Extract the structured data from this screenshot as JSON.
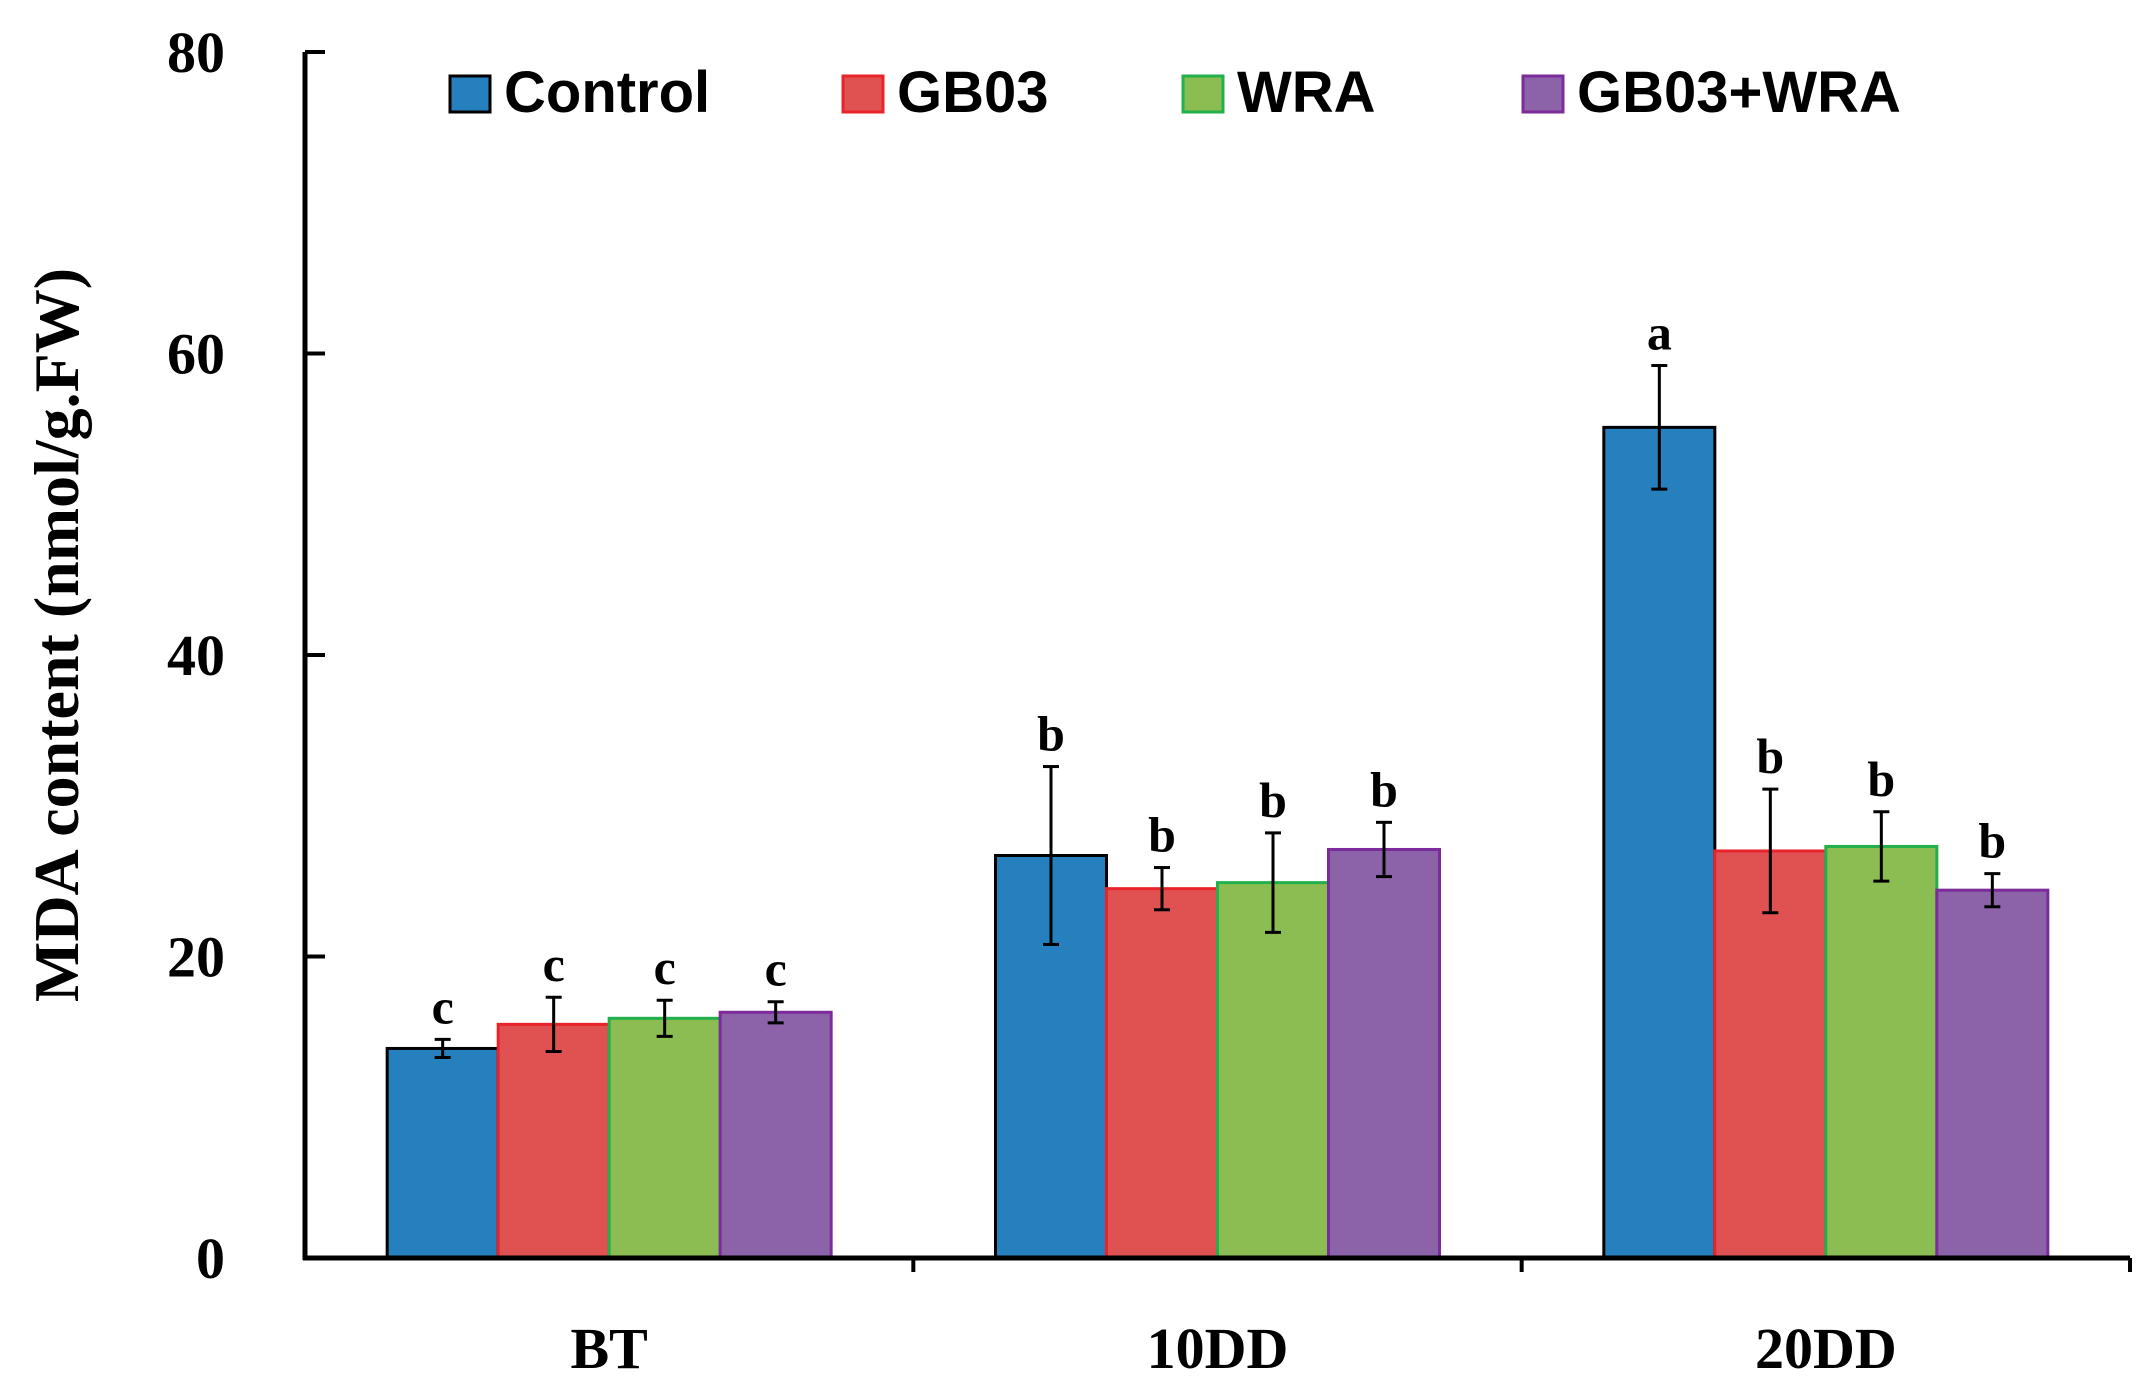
{
  "chart_data": {
    "type": "bar",
    "title": "",
    "xlabel": "",
    "ylabel": "MDA content (nmol/g.FW)",
    "ylim": [
      0,
      80
    ],
    "yticks": [
      "0",
      "20",
      "40",
      "60",
      "80"
    ],
    "categories": [
      "BT",
      "10DD",
      "20DD"
    ],
    "grid": false,
    "legend_position": "top",
    "series": [
      {
        "name": "Control",
        "fill": "#2780BE",
        "stroke": "#000000",
        "values": [
          13.9,
          26.7,
          55.1
        ],
        "errors": [
          0.6,
          5.9,
          4.1
        ],
        "letters": [
          "c",
          "b",
          "a"
        ]
      },
      {
        "name": "GB03",
        "fill": "#E05252",
        "stroke": "#E8242A",
        "values": [
          15.5,
          24.5,
          27.0
        ],
        "errors": [
          1.8,
          1.4,
          4.1
        ],
        "letters": [
          "c",
          "b",
          "b"
        ]
      },
      {
        "name": "WRA",
        "fill": "#8CBD52",
        "stroke": "#21B04B",
        "values": [
          15.9,
          24.9,
          27.3
        ],
        "errors": [
          1.2,
          3.3,
          2.3
        ],
        "letters": [
          "c",
          "b",
          "b"
        ]
      },
      {
        "name": "GB03+WRA",
        "fill": "#8C63A8",
        "stroke": "#7C2B9A",
        "values": [
          16.3,
          27.1,
          24.4
        ],
        "errors": [
          0.7,
          1.8,
          1.1
        ],
        "letters": [
          "c",
          "b",
          "b"
        ]
      }
    ]
  }
}
